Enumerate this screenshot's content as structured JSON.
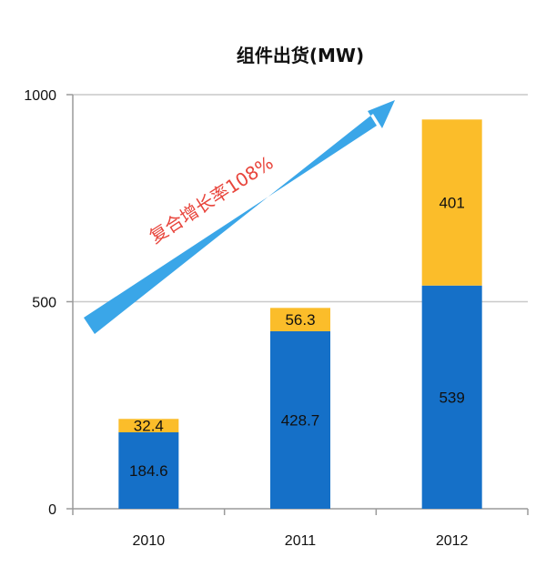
{
  "chart_data": {
    "type": "bar",
    "stacked": true,
    "title": "组件出货(MW)",
    "categories": [
      "2010",
      "2011",
      "2012"
    ],
    "series": [
      {
        "values": [
          184.6,
          428.7,
          539
        ],
        "color": "#1570c8"
      },
      {
        "values": [
          32.4,
          56.3,
          401
        ],
        "color": "#fbbd2a"
      }
    ],
    "data_labels": [
      [
        "184.6",
        "428.7",
        "539"
      ],
      [
        "32.4",
        "56.3",
        "401"
      ]
    ],
    "yticks": [
      "0",
      "500",
      "1000"
    ],
    "ylim": [
      0,
      1000
    ],
    "grid": true,
    "legend": "none",
    "annotation": {
      "text": "复合增长率108%",
      "arrow_color": "#3aa6e8",
      "text_color": "#e8453c"
    }
  }
}
